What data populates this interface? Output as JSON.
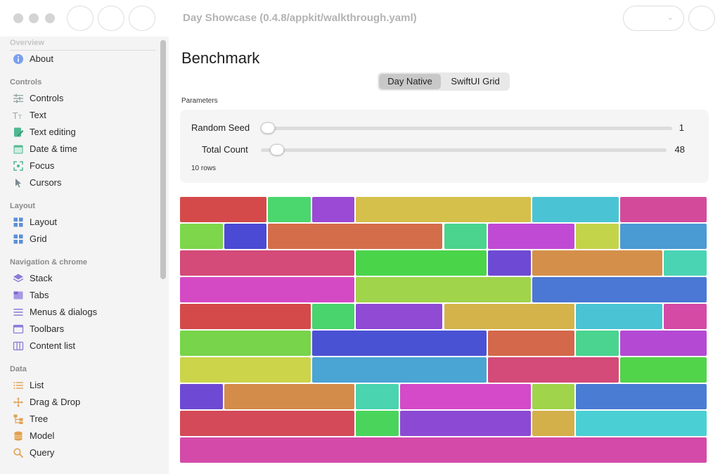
{
  "window": {
    "title": "Day Showcase (0.4.8/appkit/walkthrough.yaml)"
  },
  "sidebar": {
    "top_section": "Overview",
    "sections": [
      {
        "label": "Controls"
      },
      {
        "label": "Layout"
      },
      {
        "label": "Navigation & chrome"
      },
      {
        "label": "Data"
      }
    ],
    "items": [
      {
        "label": "About",
        "icon": "info-icon",
        "color": "#5b8ef0"
      },
      {
        "label": "Controls",
        "icon": "sliders-icon",
        "color": "#9aa8a8"
      },
      {
        "label": "Text",
        "icon": "text-icon",
        "color": "#9aa8a8"
      },
      {
        "label": "Text editing",
        "icon": "edit-icon",
        "color": "#4fb892"
      },
      {
        "label": "Date & time",
        "icon": "calendar-icon",
        "color": "#4fb892"
      },
      {
        "label": "Focus",
        "icon": "focus-icon",
        "color": "#4fb892"
      },
      {
        "label": "Cursors",
        "icon": "cursor-icon",
        "color": "#7c8a90"
      },
      {
        "label": "Layout",
        "icon": "layout-grid-icon",
        "color": "#5a8fd8"
      },
      {
        "label": "Grid",
        "icon": "grid-icon",
        "color": "#5a8fd8"
      },
      {
        "label": "Stack",
        "icon": "stack-icon",
        "color": "#8c7ad8"
      },
      {
        "label": "Tabs",
        "icon": "tabs-icon",
        "color": "#8c7ad8"
      },
      {
        "label": "Menus & dialogs",
        "icon": "menu-icon",
        "color": "#8c7ad8"
      },
      {
        "label": "Toolbars",
        "icon": "toolbar-icon",
        "color": "#8c7ad8"
      },
      {
        "label": "Content list",
        "icon": "columns-icon",
        "color": "#8c7ad8"
      },
      {
        "label": "List",
        "icon": "list-icon",
        "color": "#e0a050"
      },
      {
        "label": "Drag & Drop",
        "icon": "move-icon",
        "color": "#e0a050"
      },
      {
        "label": "Tree",
        "icon": "tree-icon",
        "color": "#e0a050"
      },
      {
        "label": "Model",
        "icon": "database-icon",
        "color": "#e0a050"
      },
      {
        "label": "Query",
        "icon": "search-icon",
        "color": "#e0a050"
      }
    ]
  },
  "main": {
    "title": "Benchmark",
    "segments": [
      {
        "label": "Day Native",
        "selected": true
      },
      {
        "label": "SwiftUI Grid",
        "selected": false
      }
    ],
    "params_label": "Parameters",
    "random_seed": {
      "label": "Random Seed",
      "value": "1",
      "fraction": 0.0
    },
    "total_count": {
      "label": "Total Count",
      "value": "48",
      "fraction": 0.04
    },
    "rows_note": "10 rows"
  },
  "grid": {
    "rows": [
      [
        "#d44a4a",
        "#4bd66e",
        "#9a4ad4",
        "#d4c04a",
        "#4ac4d4",
        "#d44a9a"
      ],
      [
        "#7ed64a",
        "#4a4ad4",
        "#d46e4a",
        "#4ad48e",
        "#c04ad4",
        "#c4d44a",
        "#4a9ad4"
      ],
      [
        "#d44a78",
        "#4ad44a",
        "#6e4ad4",
        "#d4904a",
        "#4ad4b4"
      ],
      [
        "#d44ac4",
        "#a0d44a",
        "#4a78d4"
      ],
      [
        "#d44a4a",
        "#4ad46e",
        "#904ad4",
        "#d4b44a",
        "#4ac4d4",
        "#d44aa4"
      ],
      [
        "#78d44a",
        "#4a52d4",
        "#d4684a",
        "#4ad490",
        "#b44ad4"
      ],
      [
        "#ccd44a",
        "#4aa4d4",
        "#d44a78",
        "#52d44a"
      ],
      [
        "#6e4ad4",
        "#d48c4a",
        "#4ad4b0",
        "#d44ac8",
        "#a0d44a",
        "#4a7cd4"
      ],
      [
        "#d44a58",
        "#4ad45c",
        "#8c4ad4",
        "#d4b04a",
        "#4ad0d4"
      ],
      [
        "#d44aa8"
      ]
    ]
  }
}
